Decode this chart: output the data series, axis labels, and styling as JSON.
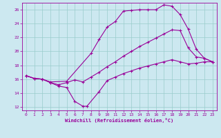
{
  "xlabel": "Windchill (Refroidissement éolien,°C)",
  "bg_color": "#cce8f0",
  "line_color": "#990099",
  "grid_color": "#99cccc",
  "xlim": [
    -0.5,
    23.5
  ],
  "ylim": [
    11.5,
    27.0
  ],
  "xticks": [
    0,
    1,
    2,
    3,
    4,
    5,
    6,
    7,
    8,
    9,
    10,
    11,
    12,
    13,
    14,
    15,
    16,
    17,
    18,
    19,
    20,
    21,
    22,
    23
  ],
  "yticks": [
    12,
    14,
    16,
    18,
    20,
    22,
    24,
    26
  ],
  "line1_x": [
    0,
    1,
    2,
    3,
    4,
    5,
    6,
    7,
    7.5,
    9,
    10,
    11,
    12,
    13,
    14,
    15,
    16,
    17,
    18,
    19,
    20,
    21,
    22,
    23
  ],
  "line1_y": [
    16.5,
    16.1,
    16.0,
    15.5,
    15.0,
    14.8,
    12.8,
    12.1,
    12.1,
    14.2,
    15.8,
    16.3,
    16.8,
    17.2,
    17.6,
    17.9,
    18.2,
    18.5,
    18.8,
    18.5,
    18.2,
    18.3,
    18.5,
    18.5
  ],
  "line2_x": [
    0,
    1,
    2,
    3,
    5,
    8,
    9,
    10,
    11,
    12,
    13,
    14,
    15,
    16,
    17,
    18,
    19,
    20,
    21,
    22,
    23
  ],
  "line2_y": [
    16.5,
    16.1,
    16.0,
    15.6,
    15.7,
    19.7,
    21.7,
    23.5,
    24.3,
    25.8,
    25.9,
    26.0,
    26.0,
    26.0,
    26.7,
    26.5,
    25.3,
    23.2,
    20.3,
    19.0,
    18.5
  ],
  "line3_x": [
    0,
    1,
    2,
    3,
    4,
    5,
    6,
    7,
    8,
    9,
    10,
    11,
    12,
    13,
    14,
    15,
    16,
    17,
    18,
    19,
    20,
    21,
    22,
    23
  ],
  "line3_y": [
    16.5,
    16.1,
    16.0,
    15.5,
    15.2,
    15.5,
    15.9,
    15.6,
    16.3,
    17.0,
    17.8,
    18.5,
    19.3,
    20.0,
    20.7,
    21.3,
    21.9,
    22.5,
    23.1,
    23.0,
    20.5,
    19.2,
    19.0,
    18.5
  ]
}
